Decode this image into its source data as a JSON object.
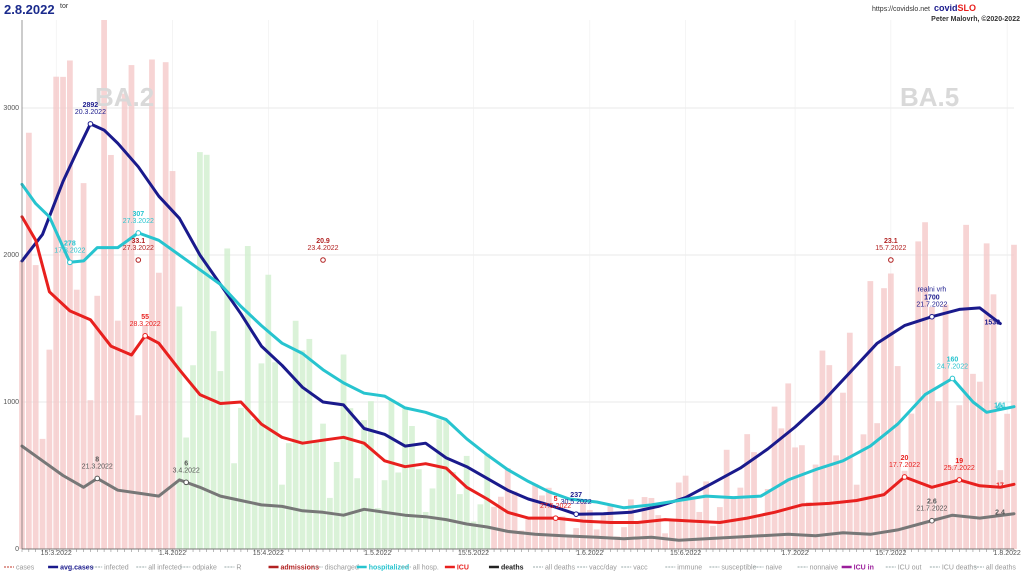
{
  "header": {
    "date": "2.8.2022",
    "superscript": "tor",
    "url": "https://covidslo.net",
    "brand_a": "covid",
    "brand_b": "SLO",
    "author": "Peter Malovrh, ©2020-2022",
    "wave_left": "BA.2",
    "wave_right": "BA.5"
  },
  "colors": {
    "avg_cases": "#1a1a8c",
    "hospitalized": "#27c4cf",
    "icu": "#e8201e",
    "deaths": "#777777",
    "admissions": "#b22222",
    "cases_bar": "#f4c6c6",
    "cases_bar_light": "#cdeecb"
  },
  "chart_data": {
    "type": "line",
    "ylim": [
      0,
      3000
    ],
    "yticks": [
      "0",
      "1000",
      "2000",
      "3000"
    ],
    "xlim": [
      "10.3.2022",
      "2.8.2022"
    ],
    "xticks": [
      "15.3.2022",
      "1.4.2022",
      "15.4.2022",
      "1.5.2022",
      "15.5.2022",
      "1.6.2022",
      "15.6.2022",
      "1.7.2022",
      "15.7.2022",
      "1.8.2022"
    ],
    "grid": true,
    "legend_position": "bottom",
    "series": [
      {
        "name": "avg.cases",
        "points": [
          [
            "10.3.2022",
            1960
          ],
          [
            "13.3.2022",
            2140
          ],
          [
            "16.3.2022",
            2500
          ],
          [
            "18.3.2022",
            2700
          ],
          [
            "20.3.2022",
            2892
          ],
          [
            "22.3.2022",
            2850
          ],
          [
            "24.3.2022",
            2760
          ],
          [
            "27.3.2022",
            2600
          ],
          [
            "30.3.2022",
            2400
          ],
          [
            "2.4.2022",
            2250
          ],
          [
            "5.4.2022",
            2000
          ],
          [
            "8.4.2022",
            1800
          ],
          [
            "11.4.2022",
            1600
          ],
          [
            "14.4.2022",
            1380
          ],
          [
            "17.4.2022",
            1250
          ],
          [
            "20.4.2022",
            1100
          ],
          [
            "23.4.2022",
            1000
          ],
          [
            "26.4.2022",
            980
          ],
          [
            "29.4.2022",
            820
          ],
          [
            "2.5.2022",
            780
          ],
          [
            "5.5.2022",
            700
          ],
          [
            "8.5.2022",
            720
          ],
          [
            "11.5.2022",
            620
          ],
          [
            "14.5.2022",
            560
          ],
          [
            "17.5.2022",
            480
          ],
          [
            "20.5.2022",
            400
          ],
          [
            "23.5.2022",
            340
          ],
          [
            "26.5.2022",
            300
          ],
          [
            "30.5.2022",
            237
          ],
          [
            "3.6.2022",
            240
          ],
          [
            "7.6.2022",
            250
          ],
          [
            "11.6.2022",
            290
          ],
          [
            "15.6.2022",
            350
          ],
          [
            "19.6.2022",
            450
          ],
          [
            "23.6.2022",
            550
          ],
          [
            "27.6.2022",
            680
          ],
          [
            "1.7.2022",
            830
          ],
          [
            "5.7.2022",
            1000
          ],
          [
            "9.7.2022",
            1200
          ],
          [
            "13.7.2022",
            1400
          ],
          [
            "17.7.2022",
            1520
          ],
          [
            "21.7.2022",
            1580
          ],
          [
            "25.7.2022",
            1630
          ],
          [
            "28.7.2022",
            1640
          ],
          [
            "31.7.2022",
            1533
          ]
        ]
      },
      {
        "name": "hospitalized",
        "points": [
          [
            "10.3.2022",
            2480
          ],
          [
            "12.3.2022",
            2350
          ],
          [
            "14.3.2022",
            2260
          ],
          [
            "17.3.2022",
            1950
          ],
          [
            "19.3.2022",
            1960
          ],
          [
            "21.3.2022",
            2050
          ],
          [
            "24.3.2022",
            2050
          ],
          [
            "27.3.2022",
            2150
          ],
          [
            "30.3.2022",
            2100
          ],
          [
            "2.4.2022",
            2000
          ],
          [
            "5.4.2022",
            1900
          ],
          [
            "8.4.2022",
            1800
          ],
          [
            "11.4.2022",
            1650
          ],
          [
            "14.4.2022",
            1520
          ],
          [
            "17.4.2022",
            1400
          ],
          [
            "20.4.2022",
            1330
          ],
          [
            "23.4.2022",
            1220
          ],
          [
            "26.4.2022",
            1130
          ],
          [
            "29.4.2022",
            1060
          ],
          [
            "2.5.2022",
            1040
          ],
          [
            "5.5.2022",
            960
          ],
          [
            "8.5.2022",
            930
          ],
          [
            "11.5.2022",
            880
          ],
          [
            "14.5.2022",
            750
          ],
          [
            "17.5.2022",
            640
          ],
          [
            "20.5.2022",
            540
          ],
          [
            "23.5.2022",
            460
          ],
          [
            "26.5.2022",
            390
          ],
          [
            "29.5.2022",
            340
          ],
          [
            "2.6.2022",
            320
          ],
          [
            "6.6.2022",
            280
          ],
          [
            "10.6.2022",
            300
          ],
          [
            "14.6.2022",
            330
          ],
          [
            "18.6.2022",
            360
          ],
          [
            "22.6.2022",
            350
          ],
          [
            "26.6.2022",
            360
          ],
          [
            "30.6.2022",
            470
          ],
          [
            "4.7.2022",
            540
          ],
          [
            "8.7.2022",
            600
          ],
          [
            "12.7.2022",
            700
          ],
          [
            "16.7.2022",
            850
          ],
          [
            "20.7.2022",
            1050
          ],
          [
            "24.7.2022",
            1160
          ],
          [
            "27.7.2022",
            1000
          ],
          [
            "29.7.2022",
            930
          ],
          [
            "2.8.2022",
            968
          ]
        ]
      },
      {
        "name": "ICU",
        "points": [
          [
            "10.3.2022",
            2260
          ],
          [
            "12.3.2022",
            2100
          ],
          [
            "14.3.2022",
            1750
          ],
          [
            "17.3.2022",
            1620
          ],
          [
            "20.3.2022",
            1560
          ],
          [
            "23.3.2022",
            1380
          ],
          [
            "26.3.2022",
            1320
          ],
          [
            "28.3.2022",
            1450
          ],
          [
            "30.3.2022",
            1400
          ],
          [
            "2.4.2022",
            1220
          ],
          [
            "5.4.2022",
            1050
          ],
          [
            "8.4.2022",
            990
          ],
          [
            "11.4.2022",
            1000
          ],
          [
            "14.4.2022",
            850
          ],
          [
            "17.4.2022",
            760
          ],
          [
            "20.4.2022",
            720
          ],
          [
            "23.4.2022",
            740
          ],
          [
            "26.4.2022",
            760
          ],
          [
            "29.4.2022",
            720
          ],
          [
            "2.5.2022",
            600
          ],
          [
            "5.5.2022",
            560
          ],
          [
            "8.5.2022",
            580
          ],
          [
            "11.5.2022",
            550
          ],
          [
            "14.5.2022",
            420
          ],
          [
            "17.5.2022",
            340
          ],
          [
            "20.5.2022",
            250
          ],
          [
            "23.5.2022",
            210
          ],
          [
            "27.5.2022",
            210
          ],
          [
            "31.5.2022",
            190
          ],
          [
            "4.6.2022",
            180
          ],
          [
            "8.6.2022",
            180
          ],
          [
            "12.6.2022",
            200
          ],
          [
            "16.6.2022",
            190
          ],
          [
            "20.6.2022",
            180
          ],
          [
            "24.6.2022",
            210
          ],
          [
            "28.6.2022",
            250
          ],
          [
            "2.7.2022",
            300
          ],
          [
            "6.7.2022",
            310
          ],
          [
            "10.7.2022",
            330
          ],
          [
            "14.7.2022",
            370
          ],
          [
            "17.7.2022",
            490
          ],
          [
            "21.7.2022",
            420
          ],
          [
            "25.7.2022",
            470
          ],
          [
            "28.7.2022",
            430
          ],
          [
            "31.7.2022",
            420
          ],
          [
            "2.8.2022",
            440
          ]
        ]
      },
      {
        "name": "deaths",
        "points": [
          [
            "10.3.2022",
            700
          ],
          [
            "13.3.2022",
            600
          ],
          [
            "16.3.2022",
            500
          ],
          [
            "19.3.2022",
            420
          ],
          [
            "21.3.2022",
            480
          ],
          [
            "24.3.2022",
            400
          ],
          [
            "27.3.2022",
            380
          ],
          [
            "30.3.2022",
            360
          ],
          [
            "2.4.2022",
            470
          ],
          [
            "5.4.2022",
            420
          ],
          [
            "8.4.2022",
            360
          ],
          [
            "11.4.2022",
            330
          ],
          [
            "14.4.2022",
            300
          ],
          [
            "17.4.2022",
            290
          ],
          [
            "20.4.2022",
            260
          ],
          [
            "23.4.2022",
            250
          ],
          [
            "26.4.2022",
            230
          ],
          [
            "29.4.2022",
            270
          ],
          [
            "2.5.2022",
            250
          ],
          [
            "5.5.2022",
            230
          ],
          [
            "8.5.2022",
            220
          ],
          [
            "11.5.2022",
            200
          ],
          [
            "14.5.2022",
            170
          ],
          [
            "17.5.2022",
            150
          ],
          [
            "20.5.2022",
            120
          ],
          [
            "24.5.2022",
            100
          ],
          [
            "28.5.2022",
            90
          ],
          [
            "2.6.2022",
            80
          ],
          [
            "6.6.2022",
            70
          ],
          [
            "10.6.2022",
            80
          ],
          [
            "14.6.2022",
            60
          ],
          [
            "18.6.2022",
            70
          ],
          [
            "22.6.2022",
            80
          ],
          [
            "26.6.2022",
            90
          ],
          [
            "30.6.2022",
            100
          ],
          [
            "4.7.2022",
            90
          ],
          [
            "8.7.2022",
            110
          ],
          [
            "12.7.2022",
            100
          ],
          [
            "16.7.2022",
            130
          ],
          [
            "20.7.2022",
            180
          ],
          [
            "24.7.2022",
            230
          ],
          [
            "28.7.2022",
            210
          ],
          [
            "2.8.2022",
            240
          ]
        ]
      }
    ],
    "annotations": [
      {
        "series": "avg.cases",
        "value": "2892",
        "date": "20.3.2022"
      },
      {
        "series": "avg.cases",
        "value": "237",
        "date": "30.5.2022"
      },
      {
        "series": "avg.cases",
        "value": "1700",
        "date": "21.7.2022",
        "label": "realni vrh"
      },
      {
        "series": "avg.cases",
        "value": "1533",
        "date": ""
      },
      {
        "series": "hospitalized",
        "value": "278",
        "date": "17.3.2022"
      },
      {
        "series": "hospitalized",
        "value": "307",
        "date": "27.3.2022"
      },
      {
        "series": "hospitalized",
        "value": "41",
        "date": ""
      },
      {
        "series": "hospitalized",
        "value": "160",
        "date": "24.7.2022"
      },
      {
        "series": "hospitalized",
        "value": "161",
        "date": ""
      },
      {
        "series": "ICU",
        "value": "55",
        "date": "28.3.2022"
      },
      {
        "series": "ICU",
        "value": "5",
        "date": "27.5.2022"
      },
      {
        "series": "ICU",
        "value": "20",
        "date": "17.7.2022"
      },
      {
        "series": "ICU",
        "value": "19",
        "date": "25.7.2022"
      },
      {
        "series": "ICU",
        "value": "17",
        "date": ""
      },
      {
        "series": "deaths",
        "value": "8",
        "date": "21.3.2022"
      },
      {
        "series": "deaths",
        "value": "6",
        "date": "3.4.2022"
      },
      {
        "series": "deaths",
        "value": "2.6",
        "date": "21.7.2022"
      },
      {
        "series": "deaths",
        "value": "2.4",
        "date": ""
      },
      {
        "series": "admissions",
        "value": "23.1",
        "date": "15.7.2022"
      },
      {
        "series": "admissions",
        "value": "20.9",
        "date": "23.4.2022"
      },
      {
        "series": "admissions",
        "value": "33.1",
        "date": "27.3.2022"
      }
    ],
    "legend": [
      "cases",
      "avg.cases",
      "infected",
      "all infected",
      "odpiake",
      "R",
      "admissions",
      "discharged",
      "hospitalized",
      "all hosp.",
      "ICU",
      "deaths",
      "all deaths",
      "vacc/day",
      "vacc",
      "immune",
      "susceptible",
      "naive",
      "nonnaive",
      "ICU in",
      "ICU out",
      "ICU deaths",
      "all deaths"
    ]
  }
}
